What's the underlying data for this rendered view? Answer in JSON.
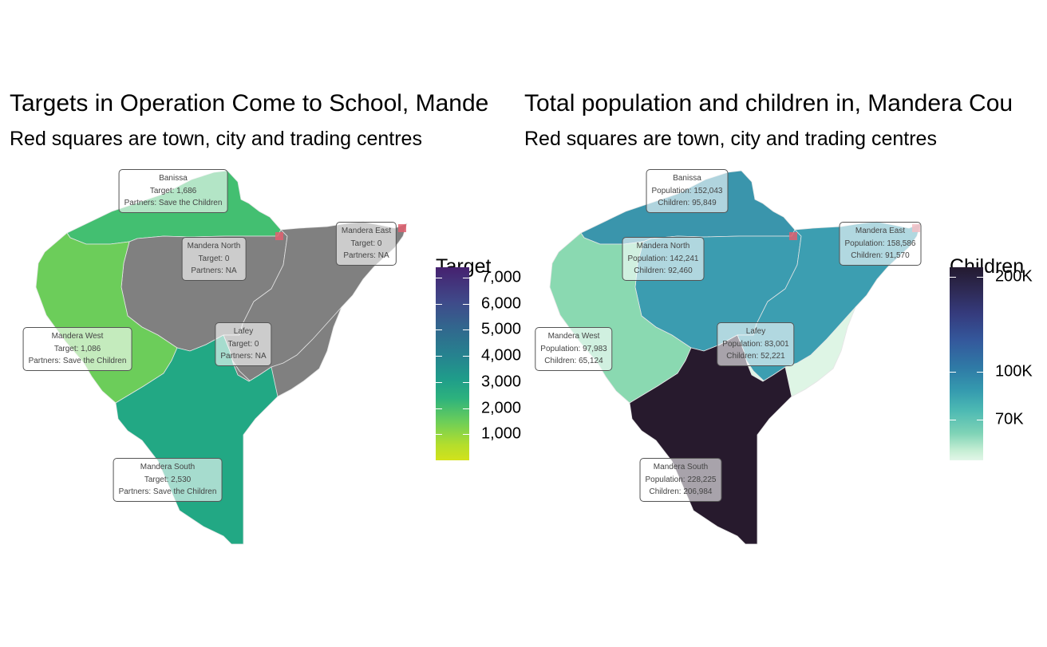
{
  "left_map": {
    "title": "Targets in Operation Come to School, Mande",
    "subtitle": "Red squares are town, city and trading centres",
    "legend": {
      "title": "Target",
      "ticks": [
        "1,000",
        "2,000",
        "3,000",
        "4,000",
        "5,000",
        "6,000",
        "7,000"
      ],
      "tick_values": [
        1000,
        2000,
        3000,
        4000,
        5000,
        6000,
        7000
      ],
      "range": [
        0,
        7400
      ]
    },
    "regions": [
      {
        "name": "Banissa",
        "target": 1686,
        "color": "#43bf71",
        "lines": [
          "Banissa",
          "Target: 1,686",
          "Partners: Save the Children"
        ]
      },
      {
        "name": "Mandera North",
        "target": 0,
        "color": "#808080",
        "lines": [
          "Mandera North",
          "Target: 0",
          "Partners: NA"
        ]
      },
      {
        "name": "Mandera East",
        "target": 0,
        "color": "#808080",
        "lines": [
          "Mandera East",
          "Target: 0",
          "Partners: NA"
        ]
      },
      {
        "name": "Mandera West",
        "target": 1086,
        "color": "#6ccd5a",
        "lines": [
          "Mandera West",
          "Target: 1,086",
          "Partners: Save the Children"
        ]
      },
      {
        "name": "Lafey",
        "target": 0,
        "color": "#808080",
        "lines": [
          "Lafey",
          "Target: 0",
          "Partners: NA"
        ]
      },
      {
        "name": "Mandera South",
        "target": 2530,
        "color": "#22a884",
        "lines": [
          "Mandera South",
          "Target: 2,530",
          "Partners: Save the Children"
        ]
      }
    ]
  },
  "right_map": {
    "title": "Total population and children in, Mandera Cou",
    "subtitle": "Red squares are town, city and trading centres",
    "legend": {
      "title": "Children",
      "ticks": [
        "70K",
        "100K",
        "200K"
      ],
      "tick_values": [
        70000,
        100000,
        200000
      ],
      "range": [
        52000,
        215000
      ],
      "scale": "log"
    },
    "regions": [
      {
        "name": "Banissa",
        "population": 152043,
        "children": 95849,
        "color": "#3a95ac",
        "lines": [
          "Banissa",
          "Population: 152,043",
          "Children: 95,849"
        ]
      },
      {
        "name": "Mandera North",
        "population": 142241,
        "children": 92460,
        "color": "#3b9cb0",
        "lines": [
          "Mandera North",
          "Population: 142,241",
          "Children: 92,460"
        ]
      },
      {
        "name": "Mandera East",
        "population": 158586,
        "children": 91570,
        "color": "#3c9eb1",
        "lines": [
          "Mandera East",
          "Population: 158,586",
          "Children: 91,570"
        ]
      },
      {
        "name": "Mandera West",
        "population": 97983,
        "children": 65124,
        "color": "#8ad9b1",
        "lines": [
          "Mandera West",
          "Population: 97,983",
          "Children: 65,124"
        ]
      },
      {
        "name": "Lafey",
        "population": 83001,
        "children": 52221,
        "color": "#def5e5",
        "lines": [
          "Lafey",
          "Population: 83,001",
          "Children: 52,221"
        ]
      },
      {
        "name": "Mandera South",
        "population": 228225,
        "children": 206984,
        "color": "#271a2d",
        "lines": [
          "Mandera South",
          "Population: 228,225",
          "Children: 206,984"
        ]
      }
    ]
  },
  "colors": {
    "town_marker": "#e06070",
    "boundary": "#e6e6e6",
    "no_data": "#808080"
  }
}
